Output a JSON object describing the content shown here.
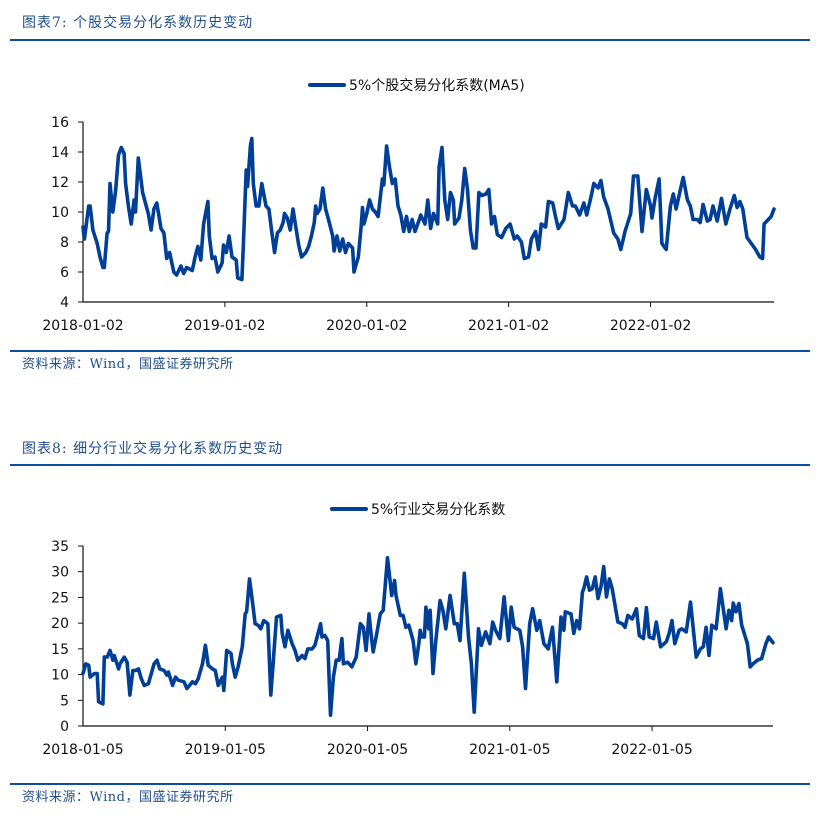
{
  "figures": [
    {
      "title": "图表7:  个股交易分化系数历史变动",
      "source": "资料来源：Wind，国盛证券研究所"
    },
    {
      "title": "图表8:  细分行业交易分化系数历史变动",
      "source": "资料来源：Wind，国盛证券研究所"
    }
  ],
  "colors": {
    "line": "#003f98",
    "rule": "#0b4ea2",
    "title": "#1f4e8c"
  },
  "chart_data": [
    {
      "type": "line",
      "title": "",
      "legend": "5%个股交易分化系数(MA5)",
      "legend_placement": "top-center",
      "x_unit": "years since 2018-01-02",
      "xlim": [
        0,
        4.87
      ],
      "ylim": [
        4,
        16
      ],
      "yticks": [
        4,
        6,
        8,
        10,
        12,
        14,
        16
      ],
      "xticks": [
        0,
        1,
        2,
        3,
        4
      ],
      "xtick_labels": [
        "2018-01-02",
        "2019-01-02",
        "2020-01-02",
        "2021-01-02",
        "2022-01-02"
      ],
      "grid": false,
      "x": [
        0,
        0.01,
        0.04,
        0.05,
        0.07,
        0.1,
        0.12,
        0.14,
        0.15,
        0.17,
        0.18,
        0.19,
        0.21,
        0.23,
        0.25,
        0.27,
        0.29,
        0.3,
        0.32,
        0.34,
        0.36,
        0.37,
        0.39,
        0.42,
        0.44,
        0.46,
        0.48,
        0.5,
        0.52,
        0.55,
        0.57,
        0.59,
        0.61,
        0.64,
        0.66,
        0.69,
        0.71,
        0.73,
        0.77,
        0.79,
        0.81,
        0.83,
        0.85,
        0.88,
        0.89,
        0.91,
        0.93,
        0.95,
        0.98,
        0.99,
        1.01,
        1.03,
        1.05,
        1.08,
        1.09,
        1.12,
        1.13,
        1.15,
        1.16,
        1.18,
        1.19,
        1.2,
        1.22,
        1.24,
        1.26,
        1.29,
        1.31,
        1.33,
        1.35,
        1.37,
        1.39,
        1.41,
        1.42,
        1.44,
        1.46,
        1.48,
        1.5,
        1.52,
        1.54,
        1.57,
        1.59,
        1.61,
        1.63,
        1.64,
        1.65,
        1.67,
        1.69,
        1.71,
        1.73,
        1.76,
        1.77,
        1.79,
        1.81,
        1.83,
        1.85,
        1.87,
        1.9,
        1.91,
        1.94,
        1.96,
        1.97,
        1.98,
        2.0,
        2.02,
        2.04,
        2.06,
        2.08,
        2.11,
        2.12,
        2.14,
        2.16,
        2.18,
        2.2,
        2.22,
        2.24,
        2.26,
        2.28,
        2.3,
        2.32,
        2.34,
        2.37,
        2.38,
        2.41,
        2.43,
        2.45,
        2.47,
        2.5,
        2.51,
        2.53,
        2.55,
        2.57,
        2.59,
        2.61,
        2.62,
        2.65,
        2.67,
        2.69,
        2.71,
        2.73,
        2.75,
        2.77,
        2.79,
        2.81,
        2.84,
        2.86,
        2.88,
        2.9,
        2.92,
        2.95,
        2.98,
        3.01,
        3.04,
        3.06,
        3.09,
        3.11,
        3.14,
        3.16,
        3.19,
        3.21,
        3.23,
        3.26,
        3.28,
        3.31,
        3.33,
        3.35,
        3.39,
        3.42,
        3.45,
        3.47,
        3.5,
        3.53,
        3.55,
        3.58,
        3.6,
        3.63,
        3.65,
        3.67,
        3.7,
        3.74,
        3.77,
        3.79,
        3.82,
        3.86,
        3.88,
        3.91,
        3.94,
        3.97,
        4.0,
        4.01,
        4.03,
        4.06,
        4.08,
        4.11,
        4.14,
        4.16,
        4.18,
        4.21,
        4.23,
        4.26,
        4.28,
        4.3,
        4.33,
        4.35,
        4.37,
        4.4,
        4.42,
        4.44,
        4.47,
        4.5,
        4.53,
        4.56,
        4.59,
        4.61,
        4.63,
        4.65,
        4.68,
        4.71,
        4.74,
        4.77,
        4.79,
        4.8,
        4.83,
        4.85,
        4.87
      ],
      "y": [
        9.0,
        8.2,
        10.4,
        10.4,
        8.8,
        7.9,
        7.0,
        6.3,
        6.3,
        8.6,
        8.7,
        11.9,
        10.0,
        11.4,
        13.8,
        14.3,
        13.9,
        11.9,
        10.4,
        9.2,
        10.8,
        10.0,
        13.6,
        11.3,
        10.6,
        9.9,
        8.8,
        10.2,
        10.6,
        8.9,
        8.6,
        6.9,
        7.3,
        6.0,
        5.8,
        6.4,
        5.9,
        6.3,
        6.1,
        7.0,
        7.7,
        6.8,
        9.2,
        10.7,
        8.4,
        6.9,
        7.0,
        6.0,
        6.6,
        7.8,
        7.3,
        8.4,
        7.0,
        6.8,
        5.6,
        5.5,
        7.7,
        12.8,
        11.7,
        14.4,
        14.9,
        11.9,
        10.4,
        10.4,
        11.9,
        10.4,
        10.2,
        8.7,
        7.3,
        8.6,
        8.8,
        9.3,
        9.9,
        9.6,
        8.8,
        10.2,
        9.0,
        7.8,
        7.0,
        7.3,
        7.7,
        8.4,
        9.3,
        10.4,
        9.9,
        10.2,
        11.6,
        10.2,
        9.5,
        8.4,
        7.4,
        8.4,
        7.4,
        8.2,
        7.3,
        7.9,
        7.6,
        6.0,
        7.0,
        9.0,
        10.3,
        9.2,
        9.9,
        10.8,
        10.2,
        10.0,
        9.7,
        12.2,
        11.8,
        14.4,
        13.0,
        11.9,
        12.2,
        10.4,
        9.8,
        8.7,
        9.7,
        8.7,
        9.5,
        8.7,
        9.5,
        9.8,
        9.2,
        10.8,
        8.9,
        9.9,
        9.2,
        13.0,
        14.3,
        10.8,
        9.5,
        11.3,
        10.8,
        9.2,
        9.6,
        10.8,
        12.9,
        11.5,
        8.8,
        7.6,
        7.6,
        11.3,
        11.1,
        11.2,
        11.5,
        9.2,
        9.7,
        8.5,
        8.3,
        8.9,
        9.2,
        8.2,
        8.4,
        8.0,
        6.9,
        7.0,
        8.2,
        8.7,
        7.5,
        9.2,
        9.0,
        10.7,
        10.6,
        9.7,
        8.9,
        9.5,
        11.3,
        10.4,
        10.4,
        9.8,
        10.6,
        9.8,
        11.0,
        11.9,
        11.6,
        12.1,
        11.0,
        10.2,
        8.6,
        8.2,
        7.5,
        8.7,
        9.9,
        12.4,
        12.4,
        8.7,
        11.5,
        10.4,
        9.6,
        10.8,
        12.2,
        7.9,
        7.5,
        10.4,
        11.2,
        10.2,
        11.5,
        12.3,
        10.8,
        10.4,
        9.5,
        9.5,
        9.3,
        10.5,
        9.4,
        9.5,
        10.4,
        9.4,
        10.9,
        9.2,
        10.2,
        11.1,
        10.3,
        10.7,
        10.2,
        8.3,
        7.9,
        7.5,
        7.0,
        6.9,
        9.2,
        9.5,
        9.7,
        10.2
      ]
    },
    {
      "type": "line",
      "title": "",
      "legend": "5%行业交易分化系数",
      "legend_placement": "top-center",
      "x_unit": "years since 2018-01-05",
      "xlim": [
        0,
        4.85
      ],
      "ylim": [
        0,
        35
      ],
      "yticks": [
        0,
        5,
        10,
        15,
        20,
        25,
        30,
        35
      ],
      "xticks": [
        0,
        1,
        2,
        3,
        4
      ],
      "xtick_labels": [
        "2018-01-05",
        "2019-01-05",
        "2020-01-05",
        "2021-01-05",
        "2022-01-05"
      ],
      "grid": false,
      "x": [
        0,
        0.02,
        0.04,
        0.05,
        0.08,
        0.1,
        0.11,
        0.14,
        0.15,
        0.17,
        0.19,
        0.21,
        0.22,
        0.25,
        0.26,
        0.29,
        0.31,
        0.33,
        0.35,
        0.37,
        0.39,
        0.41,
        0.43,
        0.46,
        0.48,
        0.5,
        0.52,
        0.54,
        0.57,
        0.59,
        0.6,
        0.63,
        0.65,
        0.67,
        0.71,
        0.73,
        0.77,
        0.79,
        0.81,
        0.84,
        0.86,
        0.88,
        0.91,
        0.93,
        0.95,
        0.98,
        0.99,
        1.01,
        1.04,
        1.05,
        1.07,
        1.09,
        1.12,
        1.14,
        1.15,
        1.17,
        1.19,
        1.21,
        1.23,
        1.25,
        1.27,
        1.3,
        1.32,
        1.34,
        1.36,
        1.39,
        1.4,
        1.42,
        1.44,
        1.47,
        1.49,
        1.51,
        1.54,
        1.56,
        1.58,
        1.61,
        1.63,
        1.67,
        1.68,
        1.7,
        1.72,
        1.74,
        1.76,
        1.78,
        1.8,
        1.82,
        1.83,
        1.86,
        1.89,
        1.92,
        1.95,
        1.97,
        1.99,
        2.01,
        2.03,
        2.04,
        2.06,
        2.09,
        2.11,
        2.14,
        2.17,
        2.19,
        2.2,
        2.23,
        2.25,
        2.27,
        2.29,
        2.32,
        2.34,
        2.36,
        2.37,
        2.38,
        2.4,
        2.41,
        2.43,
        2.44,
        2.46,
        2.48,
        2.51,
        2.53,
        2.55,
        2.58,
        2.61,
        2.63,
        2.65,
        2.68,
        2.71,
        2.73,
        2.75,
        2.78,
        2.8,
        2.83,
        2.86,
        2.88,
        2.9,
        2.93,
        2.96,
        2.99,
        3.01,
        3.03,
        3.07,
        3.09,
        3.11,
        3.14,
        3.16,
        3.19,
        3.21,
        3.24,
        3.27,
        3.3,
        3.33,
        3.36,
        3.38,
        3.39,
        3.43,
        3.45,
        3.47,
        3.49,
        3.51,
        3.52,
        3.54,
        3.56,
        3.58,
        3.6,
        3.62,
        3.64,
        3.66,
        3.68,
        3.7,
        3.72,
        3.76,
        3.79,
        3.81,
        3.83,
        3.86,
        3.89,
        3.91,
        3.94,
        3.96,
        3.98,
        4.01,
        4.03,
        4.06,
        4.1,
        4.12,
        4.14,
        4.16,
        4.19,
        4.21,
        4.24,
        4.27,
        4.31,
        4.34,
        4.36,
        4.38,
        4.4,
        4.42,
        4.45,
        4.48,
        4.52,
        4.54,
        4.56,
        4.57,
        4.59,
        4.61,
        4.63,
        4.67,
        4.69,
        4.71,
        4.74,
        4.77,
        4.8,
        4.82,
        4.85
      ],
      "y": [
        10.2,
        12.1,
        11.8,
        9.5,
        10.2,
        10.2,
        4.7,
        4.3,
        13.4,
        13.4,
        14.7,
        12.8,
        13.7,
        11.1,
        12.1,
        13.4,
        12.4,
        6.0,
        10.8,
        10.8,
        11.1,
        9.2,
        7.9,
        8.2,
        10.2,
        12.1,
        12.8,
        11.1,
        10.8,
        9.9,
        10.5,
        7.9,
        9.5,
        8.9,
        8.6,
        7.3,
        8.6,
        8.2,
        9.2,
        12.1,
        15.7,
        11.8,
        11.1,
        10.8,
        7.9,
        9.5,
        6.9,
        14.7,
        14.1,
        12.1,
        9.5,
        11.5,
        15.4,
        21.8,
        22.2,
        28.6,
        24.4,
        19.9,
        19.6,
        18.9,
        20.5,
        19.9,
        6.0,
        13.4,
        21.2,
        21.5,
        18.0,
        15.4,
        18.6,
        16.0,
        14.7,
        12.8,
        13.7,
        13.1,
        15.0,
        15.0,
        15.7,
        19.9,
        17.3,
        17.6,
        16.6,
        2.1,
        9.5,
        12.8,
        12.8,
        17.0,
        12.1,
        12.4,
        11.5,
        13.4,
        19.9,
        19.2,
        14.7,
        21.8,
        16.6,
        14.4,
        17.3,
        21.8,
        22.5,
        32.7,
        25.4,
        28.3,
        25.4,
        21.5,
        21.5,
        19.2,
        19.6,
        16.6,
        12.1,
        16.0,
        18.6,
        17.3,
        17.3,
        23.1,
        18.9,
        22.5,
        10.2,
        16.6,
        24.4,
        22.5,
        18.9,
        25.4,
        19.9,
        19.9,
        16.6,
        29.7,
        17.3,
        12.1,
        2.7,
        18.9,
        15.7,
        18.3,
        16.0,
        20.2,
        18.6,
        17.0,
        25.1,
        16.6,
        23.1,
        19.2,
        18.6,
        15.4,
        7.3,
        19.9,
        22.8,
        18.6,
        20.5,
        16.0,
        15.0,
        19.2,
        8.6,
        21.2,
        18.6,
        22.2,
        21.8,
        18.0,
        20.5,
        18.9,
        26.0,
        26.7,
        29.0,
        26.4,
        26.7,
        29.0,
        24.8,
        27.0,
        31.0,
        25.1,
        28.6,
        26.7,
        20.2,
        19.9,
        19.2,
        21.5,
        20.8,
        22.8,
        17.6,
        17.0,
        23.0,
        17.3,
        17.0,
        20.2,
        15.4,
        16.4,
        18.0,
        20.5,
        16.0,
        18.6,
        18.9,
        18.3,
        24.1,
        13.4,
        15.0,
        15.4,
        19.2,
        13.7,
        19.6,
        18.9,
        26.7,
        18.9,
        22.5,
        20.5,
        23.9,
        22.2,
        23.8,
        19.6,
        16.0,
        11.5,
        12.1,
        12.8,
        13.1,
        16.0,
        17.3,
        16.2
      ]
    }
  ]
}
